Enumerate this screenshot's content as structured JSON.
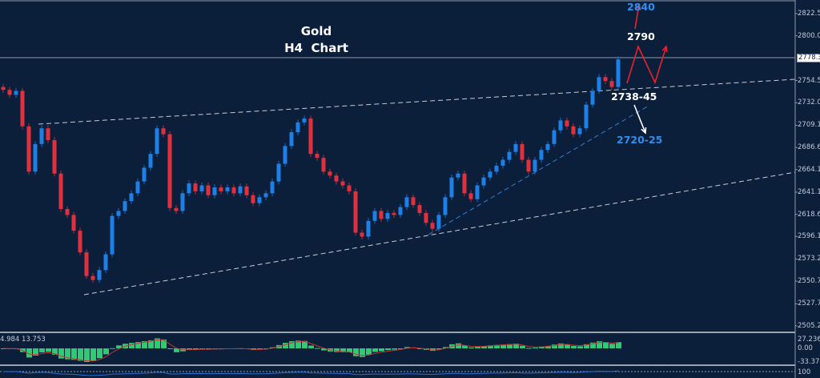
{
  "chart_data": {
    "type": "candlestick",
    "title": "Gold",
    "subtitle": "H4  Chart",
    "ylim": [
      2505.25,
      2822.5
    ],
    "closes": [
      2745,
      2740,
      2744,
      2708,
      2662,
      2690,
      2706,
      2694,
      2660,
      2624,
      2618,
      2602,
      2580,
      2556,
      2552,
      2562,
      2578,
      2617,
      2622,
      2632,
      2640,
      2652,
      2666,
      2680,
      2706,
      2700,
      2625,
      2622,
      2640,
      2650,
      2642,
      2648,
      2638,
      2646,
      2642,
      2646,
      2640,
      2647,
      2638,
      2630,
      2636,
      2640,
      2652,
      2670,
      2688,
      2702,
      2712,
      2716,
      2680,
      2676,
      2662,
      2658,
      2652,
      2648,
      2642,
      2600,
      2596,
      2612,
      2622,
      2614,
      2620,
      2618,
      2626,
      2636,
      2628,
      2620,
      2610,
      2604,
      2618,
      2636,
      2656,
      2660,
      2640,
      2634,
      2648,
      2656,
      2662,
      2668,
      2674,
      2682,
      2690,
      2674,
      2662,
      2674,
      2684,
      2690,
      2704,
      2714,
      2708,
      2700,
      2706,
      2730,
      2744,
      2758,
      2754,
      2748,
      2776
    ],
    "y_ticks": [
      "2822.50",
      "2800.00",
      "2754.55",
      "2732.05",
      "2709.10",
      "2686.60",
      "2664.10",
      "2641.15",
      "2618.65",
      "2596.15",
      "2573.20",
      "2550.70",
      "2527.75",
      "2505.25"
    ],
    "current_price": "2778.38",
    "annotations": {
      "target_high": "2840",
      "target_mid": "2790",
      "support": "2738-45",
      "target_low": "2720-25"
    },
    "indicator": {
      "label": "4.984 13.753",
      "ticks": [
        "27.236",
        "0.00",
        "-33.371"
      ]
    },
    "bottom_indicator": {
      "ticks": [
        "100"
      ]
    },
    "colors": {
      "background": "#0b1f3b",
      "bull": "#1e7fe6",
      "bear": "#e0303e",
      "histogram": "#2ecc71",
      "signal": "#c0392b",
      "target_blue": "#2f8ff0",
      "arrow_red": "#e8212e"
    }
  }
}
